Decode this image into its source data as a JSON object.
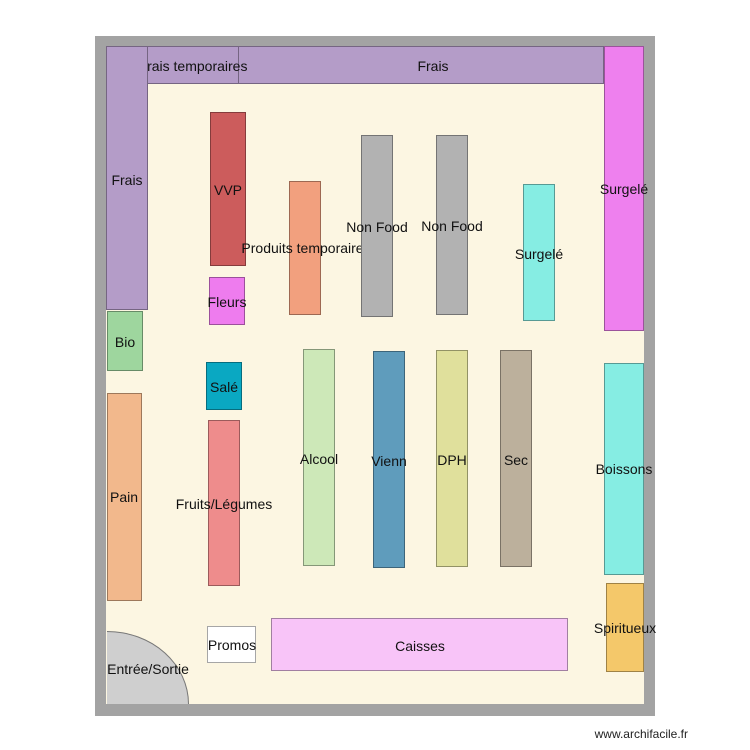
{
  "plan": {
    "zones": {
      "frais_temporaires_top": "Frais temporaires",
      "frais_top": "Frais",
      "frais_left": "Frais",
      "bio": "Bio",
      "pain": "Pain",
      "vvp": "VVP",
      "fleurs": "Fleurs",
      "sale": "Salé",
      "fruits_legumes": "Fruits/Légumes",
      "produits_temporaires": "Produits temporaires",
      "non_food_1": "Non Food",
      "non_food_2": "Non Food",
      "surgele_mid": "Surgelé",
      "surgele_right": "Surgelé",
      "alcool": "Alcool",
      "vienn": "Vienn",
      "dph": "DPH",
      "sec": "Sec",
      "boissons": "Boissons",
      "spiritueux": "Spiritueux",
      "promos": "Promos",
      "caisses": "Caisses",
      "entree_sortie": "Entrée/Sortie"
    },
    "colors": {
      "frais": "#b49cc8",
      "bio": "#9ed69e",
      "pain": "#f2b88c",
      "vvp": "#cc5c5c",
      "fleurs": "#ee7cee",
      "sale": "#0aa8c2",
      "fruits_legumes": "#ee8c8c",
      "produits_temporaires": "#f2a07e",
      "non_food": "#b2b2b2",
      "surgele": "#86ede3",
      "surgele_right": "#ee80ee",
      "alcool": "#cde8b8",
      "vienn": "#5f9cbc",
      "dph": "#e0e09c",
      "sec": "#bcb09c",
      "boissons": "#86ede3",
      "spiritueux": "#f4c86a",
      "promos": "#ffffff",
      "caisses": "#f8c4f8"
    }
  },
  "watermark": "www.archifacile.fr"
}
